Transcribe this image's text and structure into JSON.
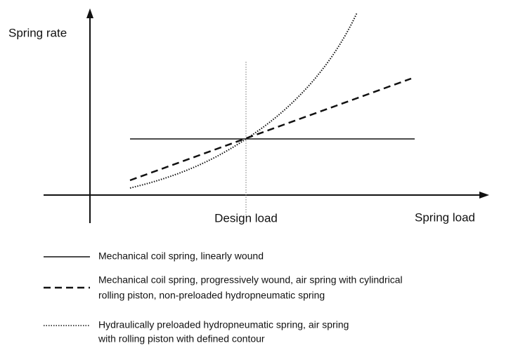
{
  "axes": {
    "y_label": "Spring rate",
    "x_label": "Spring load",
    "marker_label": "Design load"
  },
  "legend": [
    {
      "lines": [
        "Mechanical coil spring, linearly wound"
      ]
    },
    {
      "lines": [
        "Mechanical coil spring, progressively wound, air spring with cylindrical",
        "rolling piston, non-preloaded hydropneumatic spring"
      ]
    },
    {
      "lines": [
        "Hydraulically preloaded hydropneumatic spring, air spring",
        "with rolling piston with defined contour"
      ]
    }
  ]
}
